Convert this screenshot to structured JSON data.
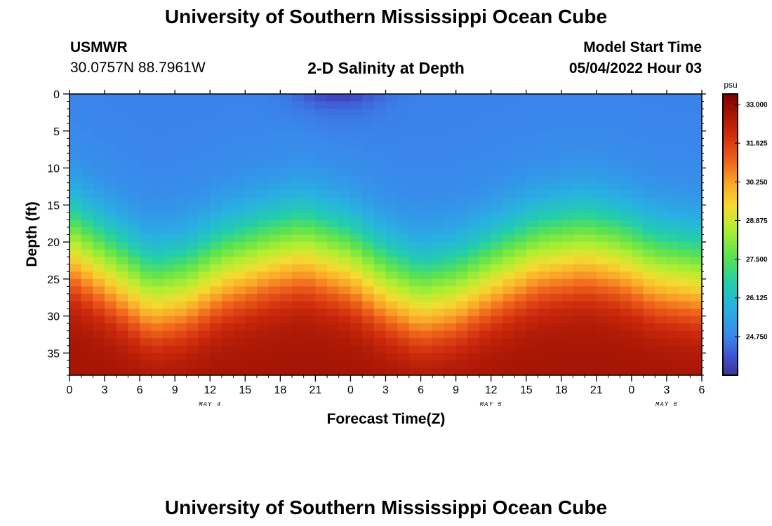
{
  "page": {
    "title_top": "University of Southern Mississippi Ocean Cube",
    "title_bottom": "University of Southern Mississippi Ocean Cube",
    "station_name": "USMWR",
    "station_coords": "30.0757N  88.7961W",
    "plot_title": "2-D Salinity at Depth",
    "model_start_label": "Model Start Time",
    "model_start_value": "05/04/2022 Hour 03"
  },
  "chart_data": {
    "type": "heatmap",
    "title": "2-D Salinity at Depth",
    "xlabel": "Forecast Time(Z)",
    "ylabel": "Depth (ft)",
    "xlim": [
      0,
      54
    ],
    "ylim": [
      0,
      38
    ],
    "x_tick_values": [
      0,
      3,
      6,
      9,
      12,
      15,
      18,
      21,
      24,
      27,
      30,
      33,
      36,
      39,
      42,
      45,
      48,
      51,
      54
    ],
    "x_tick_labels": [
      "0",
      "3",
      "6",
      "9",
      "12",
      "15",
      "18",
      "21",
      "0",
      "3",
      "6",
      "9",
      "12",
      "15",
      "18",
      "21",
      "0",
      "3",
      "6"
    ],
    "date_labels": [
      {
        "x": 12,
        "label": "MAY 4"
      },
      {
        "x": 36,
        "label": "MAY 5"
      },
      {
        "x": 51,
        "label": "MAY 6"
      }
    ],
    "y_tick_values": [
      0,
      5,
      10,
      15,
      20,
      25,
      30,
      35
    ],
    "y_tick_labels": [
      "0",
      "5",
      "10",
      "15",
      "20",
      "25",
      "30",
      "35"
    ],
    "colorbar": {
      "unit": "psu",
      "min": 23.375,
      "max": 33.375,
      "tick_values": [
        33.0,
        31.625,
        30.25,
        28.875,
        27.5,
        26.125,
        24.75
      ],
      "tick_labels": [
        "33.000",
        "31.625",
        "30.250",
        "28.875",
        "27.500",
        "26.125",
        "24.750"
      ]
    },
    "grid_step": {
      "hours": 1,
      "depth_ft": 1
    },
    "halocline_profile": {
      "hours": [
        0,
        3,
        7,
        10,
        13,
        17,
        20,
        24,
        27,
        30,
        33,
        37,
        40,
        44,
        47,
        50,
        54
      ],
      "mid_depth_ft": [
        17,
        20,
        24,
        23,
        20.5,
        18.5,
        17.5,
        19.5,
        22.5,
        24.5,
        23.5,
        20.5,
        18.5,
        17.5,
        18.5,
        20.5,
        21.5
      ]
    },
    "surface_min_salinity": 23.5,
    "surface_salinity": 24.7,
    "bottom_salinity": 32.7
  }
}
